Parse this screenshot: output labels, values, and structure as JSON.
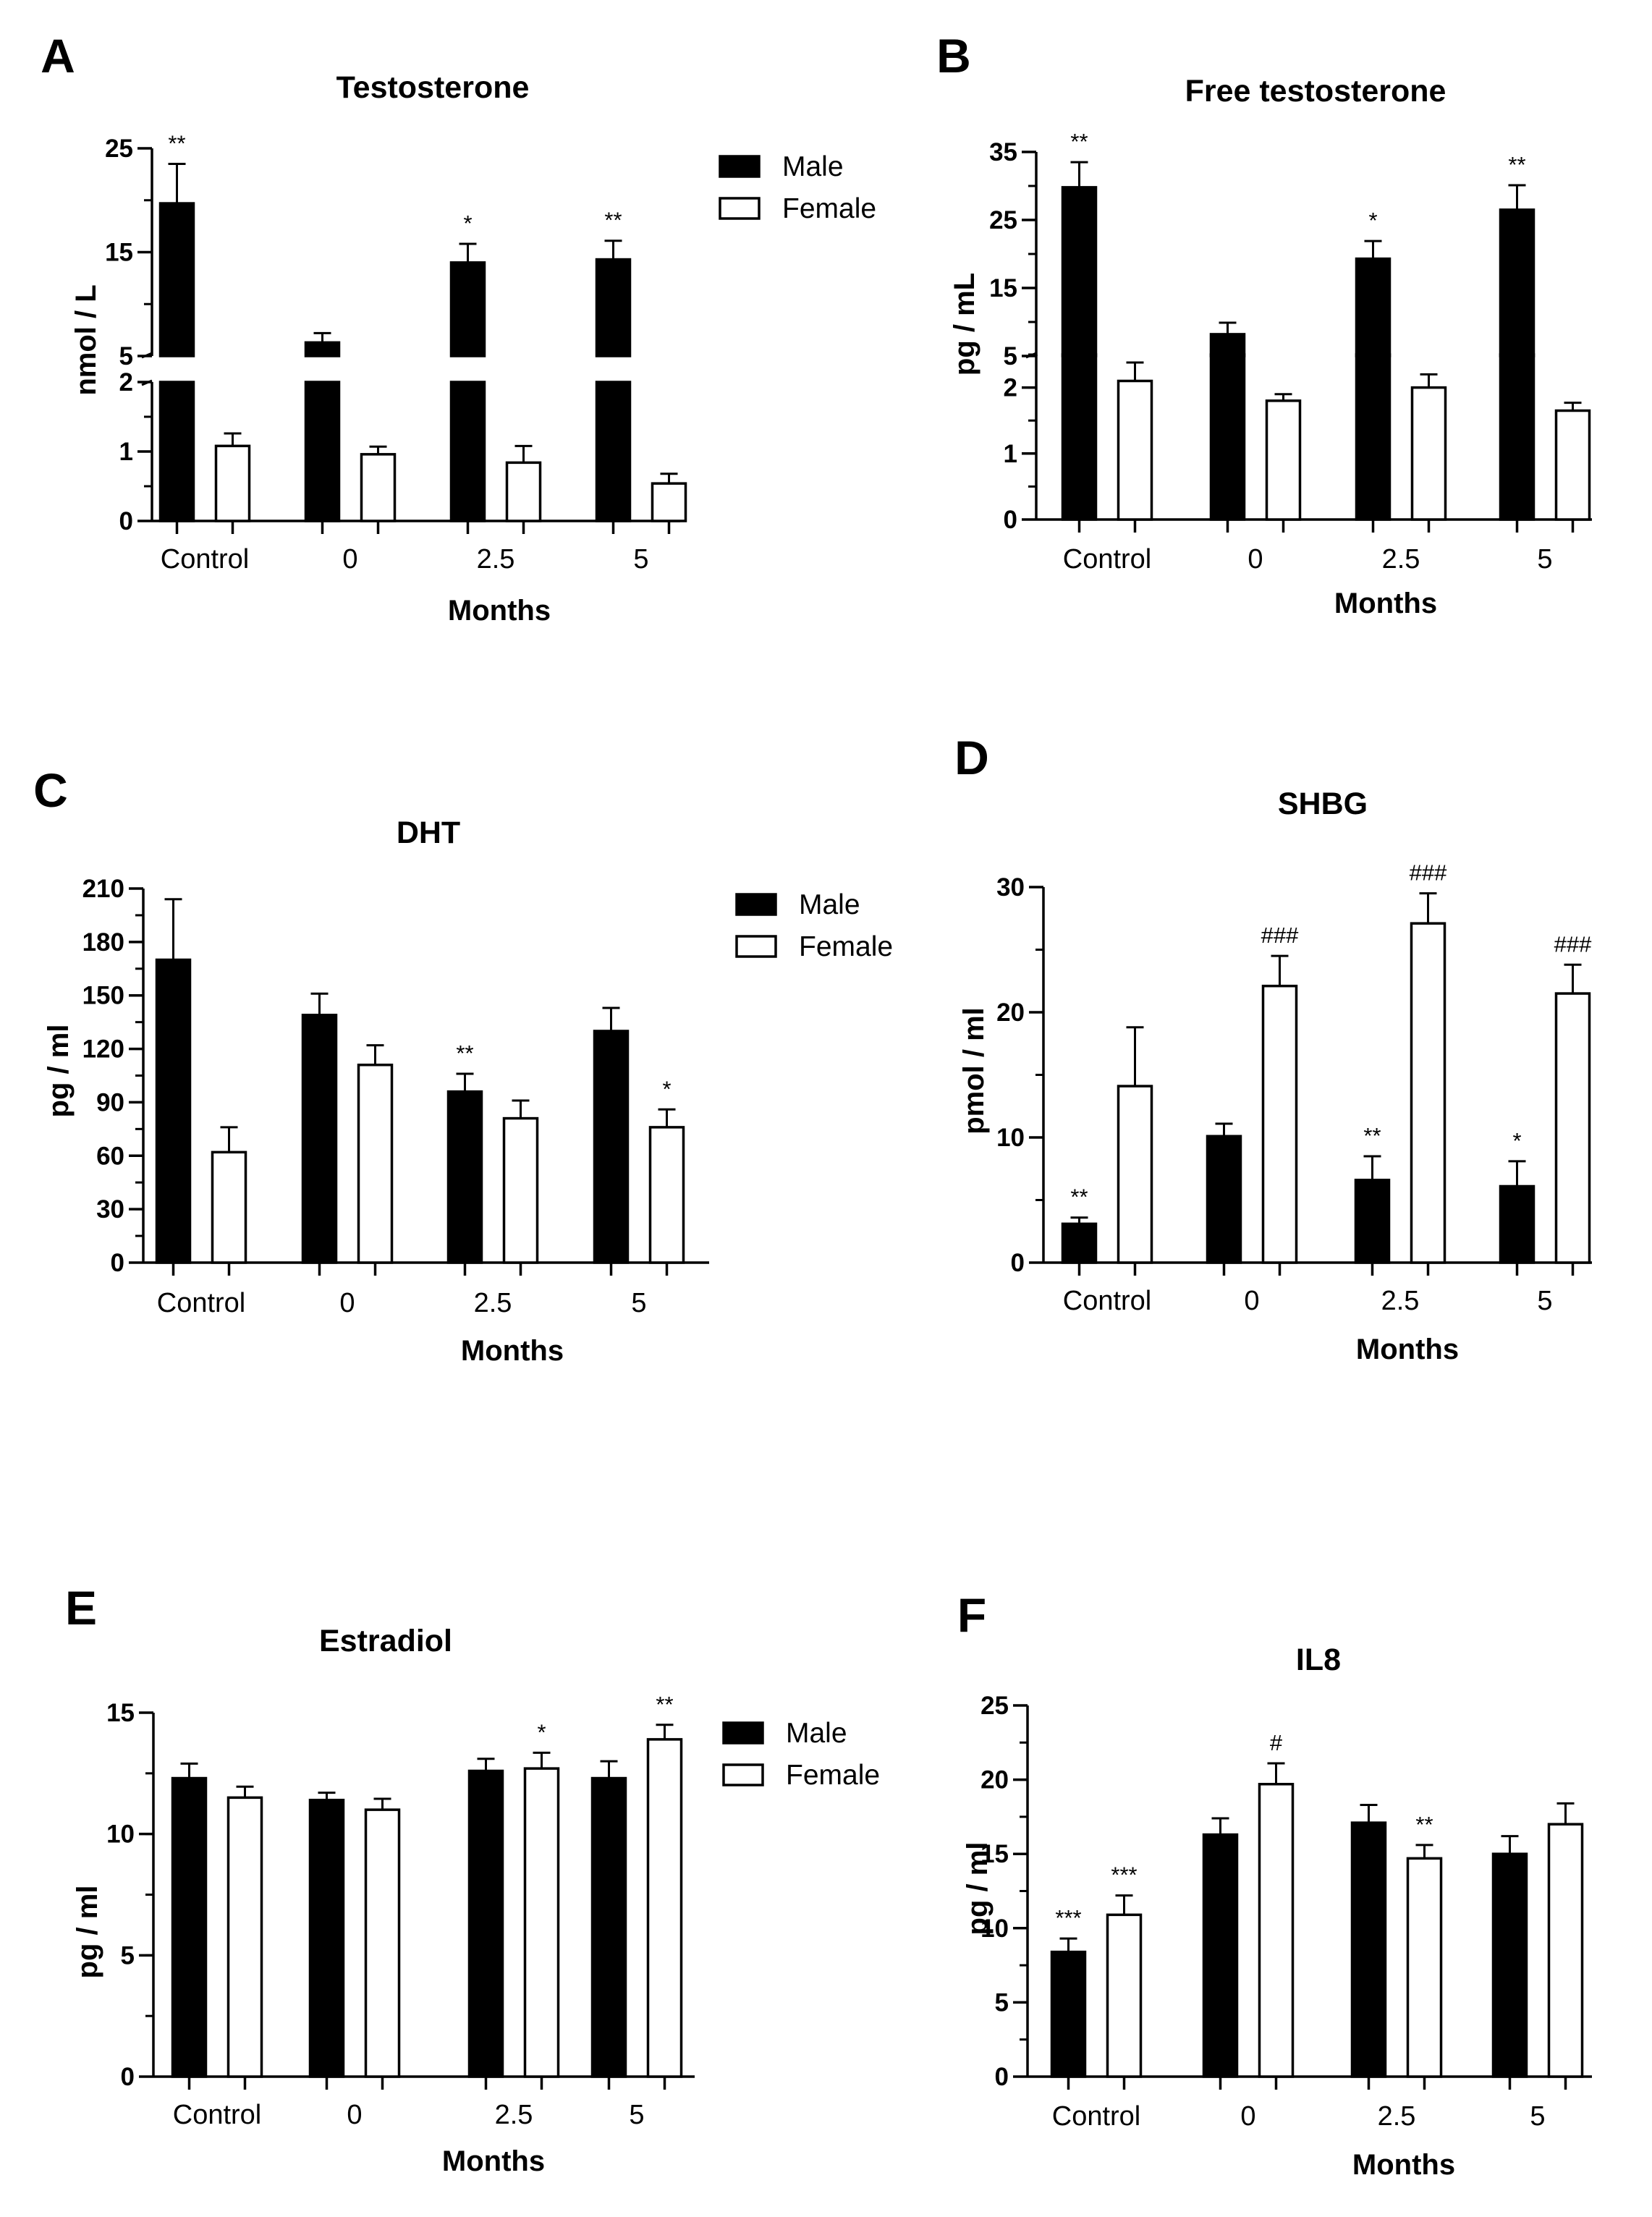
{
  "figure": {
    "series_names": [
      "Male",
      "Female"
    ],
    "colors": {
      "male_fill": "#000000",
      "female_fill": "#ffffff",
      "stroke": "#000000"
    }
  },
  "chart_data": [
    {
      "panel": "A",
      "title": "Testosterone",
      "type": "bar",
      "xlabel": "Months",
      "ylabel": "nmol / L",
      "categories": [
        "Control",
        "0",
        "2.5",
        "5"
      ],
      "series": [
        {
          "name": "Male",
          "values": [
            19.7,
            6.3,
            14.0,
            14.3
          ],
          "errors": [
            3.8,
            0.9,
            1.8,
            1.8
          ]
        },
        {
          "name": "Female",
          "values": [
            1.08,
            0.96,
            0.84,
            0.54
          ],
          "errors": [
            0.18,
            0.11,
            0.24,
            0.14
          ]
        }
      ],
      "significance": {
        "Male": [
          "**",
          "",
          "*",
          "**"
        ],
        "Female": [
          "",
          "",
          "",
          ""
        ]
      },
      "axis_break": {
        "lower_range": [
          0,
          2
        ],
        "upper_range": [
          5,
          25
        ]
      },
      "lower_ticks": [
        "0",
        "1",
        "2"
      ],
      "upper_ticks": [
        "5",
        "15",
        "25"
      ],
      "legend": "top-right"
    },
    {
      "panel": "B",
      "title": "Free testosterone",
      "type": "bar",
      "xlabel": "Months",
      "ylabel": "pg / mL",
      "categories": [
        "Control",
        "0",
        "2.5",
        "5"
      ],
      "series": [
        {
          "name": "Male",
          "values": [
            29.8,
            8.2,
            19.3,
            26.5
          ],
          "errors": [
            3.7,
            1.7,
            2.6,
            3.6
          ]
        },
        {
          "name": "Female",
          "values": [
            2.1,
            1.8,
            2.0,
            1.65
          ],
          "errors": [
            0.28,
            0.1,
            0.2,
            0.12
          ]
        }
      ],
      "significance": {
        "Male": [
          "**",
          "",
          "*",
          "**"
        ],
        "Female": [
          "",
          "",
          "",
          ""
        ]
      },
      "axis_break": {
        "lower_range": [
          0,
          2.5
        ],
        "upper_range": [
          5,
          35
        ]
      },
      "lower_ticks": [
        "0",
        "1",
        "2"
      ],
      "upper_ticks": [
        "5",
        "15",
        "25",
        "35"
      ],
      "legend": "none"
    },
    {
      "panel": "C",
      "title": "DHT",
      "type": "bar",
      "xlabel": "Months",
      "ylabel": "pg / ml",
      "categories": [
        "Control",
        "0",
        "2.5",
        "5"
      ],
      "series": [
        {
          "name": "Male",
          "values": [
            170,
            139,
            96,
            130
          ],
          "errors": [
            34,
            12,
            10,
            13
          ]
        },
        {
          "name": "Female",
          "values": [
            62,
            111,
            81,
            76
          ],
          "errors": [
            14,
            11,
            10,
            10
          ]
        }
      ],
      "significance": {
        "Male": [
          "",
          "",
          "**",
          ""
        ],
        "Female": [
          "",
          "",
          "",
          "*"
        ]
      },
      "ylim": [
        0,
        210
      ],
      "yticks": [
        "0",
        "30",
        "60",
        "90",
        "120",
        "150",
        "180",
        "210"
      ],
      "legend": "top-right"
    },
    {
      "panel": "D",
      "title": "SHBG",
      "type": "bar",
      "xlabel": "Months",
      "ylabel": "pmol / ml",
      "categories": [
        "Control",
        "0",
        "2.5",
        "5"
      ],
      "series": [
        {
          "name": "Male",
          "values": [
            3.1,
            10.1,
            6.6,
            6.1
          ],
          "errors": [
            0.5,
            1.0,
            1.9,
            2.0
          ]
        },
        {
          "name": "Female",
          "values": [
            14.1,
            22.1,
            27.1,
            21.5
          ],
          "errors": [
            4.7,
            2.4,
            2.4,
            2.3
          ]
        }
      ],
      "significance": {
        "Male": [
          "**",
          "",
          "**",
          "*"
        ],
        "Female": [
          "",
          "###",
          "###",
          "###"
        ]
      },
      "ylim": [
        0,
        30
      ],
      "yticks": [
        "0",
        "10",
        "20",
        "30"
      ],
      "legend": "none"
    },
    {
      "panel": "E",
      "title": "Estradiol",
      "type": "bar",
      "xlabel": "Months",
      "ylabel": "pg / ml",
      "categories": [
        "Control",
        "0",
        "2.5",
        "5"
      ],
      "series": [
        {
          "name": "Male",
          "values": [
            12.3,
            11.4,
            12.6,
            12.3
          ],
          "errors": [
            0.6,
            0.3,
            0.5,
            0.7
          ]
        },
        {
          "name": "Female",
          "values": [
            11.5,
            11.0,
            12.7,
            13.9
          ],
          "errors": [
            0.45,
            0.45,
            0.65,
            0.6
          ]
        }
      ],
      "significance": {
        "Male": [
          "",
          "",
          "",
          ""
        ],
        "Female": [
          "",
          "",
          "*",
          "**"
        ]
      },
      "ylim": [
        0,
        15
      ],
      "yticks": [
        "0",
        "5",
        "10",
        "15"
      ],
      "legend": "top-right"
    },
    {
      "panel": "F",
      "title": "IL8",
      "type": "bar",
      "xlabel": "Months",
      "ylabel": "pg / ml",
      "categories": [
        "Control",
        "0",
        "2.5",
        "5"
      ],
      "series": [
        {
          "name": "Male",
          "values": [
            8.4,
            16.3,
            17.1,
            15.0
          ],
          "errors": [
            0.9,
            1.1,
            1.2,
            1.2
          ]
        },
        {
          "name": "Female",
          "values": [
            10.9,
            19.7,
            14.7,
            17.0
          ],
          "errors": [
            1.3,
            1.4,
            0.9,
            1.4
          ]
        }
      ],
      "significance": {
        "Male": [
          "***",
          "",
          "",
          ""
        ],
        "Female": [
          "***",
          "#",
          "**",
          ""
        ]
      },
      "ylim": [
        0,
        25
      ],
      "yticks": [
        "0",
        "5",
        "10",
        "15",
        "20",
        "25"
      ],
      "legend": "none"
    }
  ]
}
